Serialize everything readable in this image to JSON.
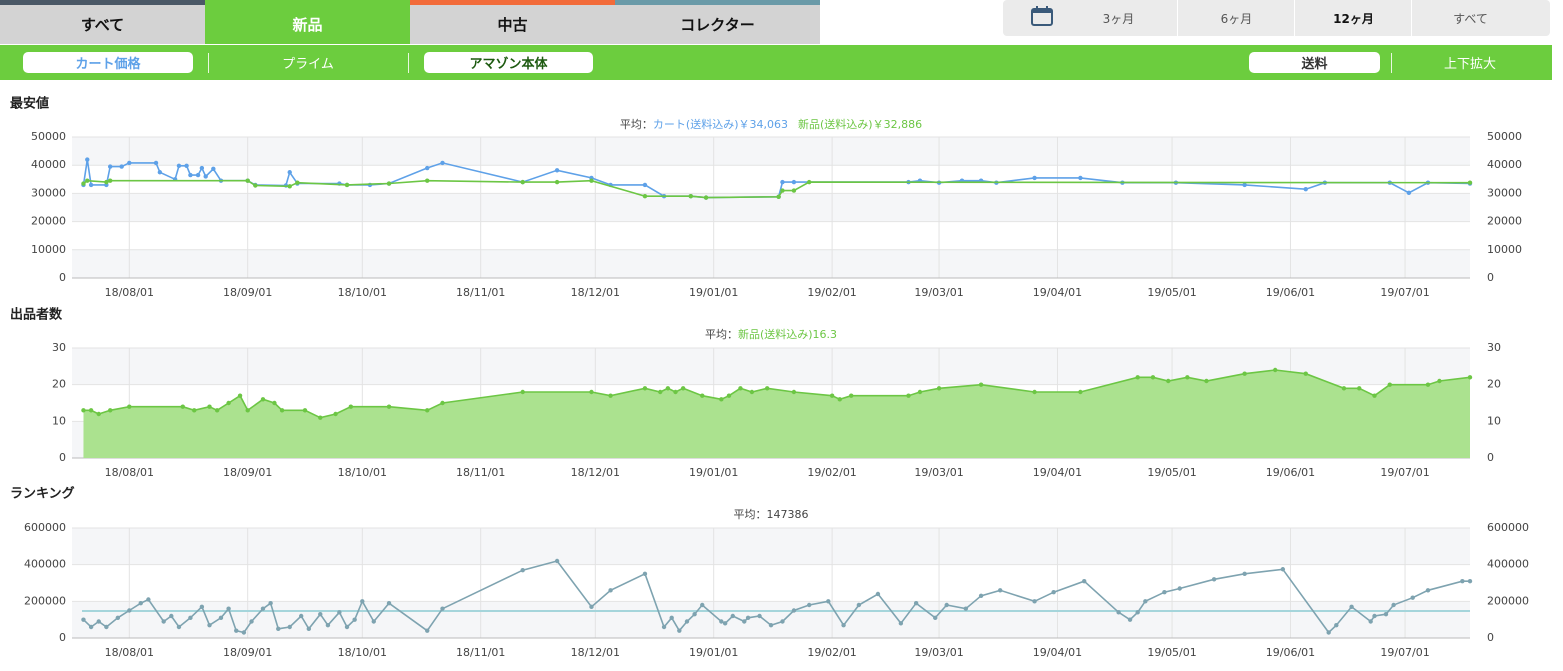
{
  "tabs": [
    "すべて",
    "新品",
    "中古",
    "コレクター"
  ],
  "periods": [
    "3ヶ月",
    "6ヶ月",
    "12ヶ月",
    "すべて"
  ],
  "filters": [
    "カート価格",
    "プライム",
    "アマゾン本体",
    "送料",
    "上下拡大"
  ],
  "chart_data": [
    {
      "type": "line",
      "title": "最安値",
      "average_label": "平均：",
      "averages": [
        "カート(送料込み)￥34,063",
        "新品(送料込み)￥32,886"
      ],
      "xlim": [
        "18/07/17",
        "19/07/18"
      ],
      "xticks": [
        "18/08/01",
        "18/09/01",
        "18/10/01",
        "18/11/01",
        "18/12/01",
        "19/01/01",
        "19/02/01",
        "19/03/01",
        "19/04/01",
        "19/05/01",
        "19/06/01",
        "19/07/01"
      ],
      "ylim": [
        0,
        50000
      ],
      "yticks": [
        0,
        10000,
        20000,
        30000,
        40000,
        50000
      ],
      "grid": true,
      "series": [
        {
          "color": "#5ea1e8",
          "x": [
            "18/07/20",
            "18/07/21",
            "18/07/22",
            "18/07/26",
            "18/07/27",
            "18/07/30",
            "18/08/01",
            "18/08/08",
            "18/08/09",
            "18/08/13",
            "18/08/14",
            "18/08/16",
            "18/08/17",
            "18/08/19",
            "18/08/20",
            "18/08/21",
            "18/08/23",
            "18/08/25",
            "18/09/01",
            "18/09/03",
            "18/09/11",
            "18/09/12",
            "18/09/14",
            "18/09/25",
            "18/09/27",
            "18/10/03",
            "18/10/08",
            "18/10/18",
            "18/10/22",
            "18/11/12",
            "18/11/21",
            "18/11/30",
            "18/12/05",
            "18/12/14",
            "18/12/19",
            "18/12/26",
            "18/12/30",
            "19/01/18",
            "19/01/19",
            "19/01/22",
            "19/02/21",
            "19/02/24",
            "19/03/01",
            "19/03/07",
            "19/03/12",
            "19/03/16",
            "19/03/26",
            "19/04/07",
            "19/04/18",
            "19/05/02",
            "19/05/20",
            "19/06/05",
            "19/06/10",
            "19/06/27",
            "19/07/02",
            "19/07/07",
            "19/07/18"
          ],
          "values": [
            33000,
            42000,
            33000,
            33000,
            39500,
            39500,
            40800,
            40800,
            37500,
            35000,
            39800,
            39800,
            36500,
            36500,
            39000,
            36000,
            38700,
            34500,
            34500,
            33000,
            32800,
            37500,
            33500,
            33500,
            33000,
            33000,
            33500,
            39000,
            40800,
            34000,
            38200,
            35500,
            33000,
            33000,
            29000,
            29000,
            28500,
            28800,
            34000,
            34000,
            34000,
            34500,
            33800,
            34500,
            34500,
            33800,
            35500,
            35500,
            33800,
            33800,
            33000,
            31500,
            33800,
            33800,
            30200,
            33800,
            33500
          ]
        },
        {
          "color": "#6cc644",
          "x": [
            "18/07/20",
            "18/07/21",
            "18/07/26",
            "18/07/27",
            "18/09/01",
            "18/09/03",
            "18/09/12",
            "18/09/14",
            "18/09/27",
            "18/10/08",
            "18/10/18",
            "18/11/12",
            "18/11/21",
            "18/11/30",
            "18/12/14",
            "18/12/26",
            "18/12/30",
            "19/01/18",
            "19/01/19",
            "19/01/22",
            "19/01/26",
            "19/07/18"
          ],
          "values": [
            33500,
            34500,
            34000,
            34500,
            34500,
            32800,
            32500,
            33800,
            33000,
            33500,
            34500,
            34000,
            34000,
            34500,
            29000,
            29000,
            28500,
            28800,
            31000,
            31000,
            34000,
            33800
          ]
        }
      ]
    },
    {
      "type": "area",
      "title": "出品者数",
      "average_label": "平均：",
      "averages": [
        "新品(送料込み)16.3"
      ],
      "xlim": [
        "18/07/17",
        "19/07/18"
      ],
      "xticks": [
        "18/08/01",
        "18/09/01",
        "18/10/01",
        "18/11/01",
        "18/12/01",
        "19/01/01",
        "19/02/01",
        "19/03/01",
        "19/04/01",
        "19/05/01",
        "19/06/01",
        "19/07/01"
      ],
      "ylim": [
        0,
        30
      ],
      "yticks": [
        0,
        10,
        20,
        30
      ],
      "grid": true,
      "series": [
        {
          "color": "#6cc644",
          "fill": "#abe28f",
          "x": [
            "18/07/20",
            "18/07/22",
            "18/07/24",
            "18/07/27",
            "18/08/01",
            "18/08/15",
            "18/08/18",
            "18/08/22",
            "18/08/24",
            "18/08/27",
            "18/08/30",
            "18/09/01",
            "18/09/05",
            "18/09/08",
            "18/09/10",
            "18/09/16",
            "18/09/20",
            "18/09/24",
            "18/09/28",
            "18/10/08",
            "18/10/18",
            "18/10/22",
            "18/11/12",
            "18/11/30",
            "18/12/05",
            "18/12/14",
            "18/12/18",
            "18/12/20",
            "18/12/22",
            "18/12/24",
            "18/12/29",
            "19/01/03",
            "19/01/05",
            "19/01/08",
            "19/01/11",
            "19/01/15",
            "19/01/22",
            "19/02/01",
            "19/02/03",
            "19/02/06",
            "19/02/21",
            "19/02/24",
            "19/03/01",
            "19/03/12",
            "19/03/26",
            "19/04/07",
            "19/04/22",
            "19/04/26",
            "19/04/30",
            "19/05/05",
            "19/05/10",
            "19/05/20",
            "19/05/28",
            "19/06/05",
            "19/06/15",
            "19/06/19",
            "19/06/23",
            "19/06/27",
            "19/07/07",
            "19/07/10",
            "19/07/18"
          ],
          "values": [
            13,
            13,
            12,
            13,
            14,
            14,
            13,
            14,
            13,
            15,
            17,
            13,
            16,
            15,
            13,
            13,
            11,
            12,
            14,
            14,
            13,
            15,
            18,
            18,
            17,
            19,
            18,
            19,
            18,
            19,
            17,
            16,
            17,
            19,
            18,
            19,
            18,
            17,
            16,
            17,
            17,
            18,
            19,
            20,
            18,
            18,
            22,
            22,
            21,
            22,
            21,
            23,
            24,
            23,
            19,
            19,
            17,
            20,
            20,
            21,
            22
          ]
        }
      ]
    },
    {
      "type": "line",
      "title": "ランキング",
      "average_label": "平均：",
      "average": 147386,
      "average_color": "#a5d5db",
      "xlim": [
        "18/07/17",
        "19/07/18"
      ],
      "xticks": [
        "18/08/01",
        "18/09/01",
        "18/10/01",
        "18/11/01",
        "18/12/01",
        "19/01/01",
        "19/02/01",
        "19/03/01",
        "19/04/01",
        "19/05/01",
        "19/06/01",
        "19/07/01"
      ],
      "ylim": [
        0,
        600000
      ],
      "yticks": [
        0,
        200000,
        400000,
        600000
      ],
      "grid": true,
      "series": [
        {
          "color": "#7ea3b0",
          "x": [
            "18/07/20",
            "18/07/22",
            "18/07/24",
            "18/07/26",
            "18/07/29",
            "18/08/01",
            "18/08/04",
            "18/08/06",
            "18/08/10",
            "18/08/12",
            "18/08/14",
            "18/08/17",
            "18/08/20",
            "18/08/22",
            "18/08/25",
            "18/08/27",
            "18/08/29",
            "18/08/31",
            "18/09/02",
            "18/09/05",
            "18/09/07",
            "18/09/09",
            "18/09/12",
            "18/09/15",
            "18/09/17",
            "18/09/20",
            "18/09/22",
            "18/09/25",
            "18/09/27",
            "18/09/29",
            "18/10/01",
            "18/10/04",
            "18/10/08",
            "18/10/18",
            "18/10/22",
            "18/11/12",
            "18/11/21",
            "18/11/30",
            "18/12/05",
            "18/12/14",
            "18/12/19",
            "18/12/21",
            "18/12/23",
            "18/12/25",
            "18/12/27",
            "18/12/29",
            "19/01/03",
            "19/01/04",
            "19/01/06",
            "19/01/09",
            "19/01/10",
            "19/01/13",
            "19/01/16",
            "19/01/19",
            "19/01/22",
            "19/01/26",
            "19/01/31",
            "19/02/04",
            "19/02/08",
            "19/02/13",
            "19/02/19",
            "19/02/23",
            "19/02/28",
            "19/03/03",
            "19/03/08",
            "19/03/12",
            "19/03/17",
            "19/03/26",
            "19/03/31",
            "19/04/08",
            "19/04/17",
            "19/04/20",
            "19/04/22",
            "19/04/24",
            "19/04/29",
            "19/05/03",
            "19/05/12",
            "19/05/20",
            "19/05/30",
            "19/06/11",
            "19/06/13",
            "19/06/17",
            "19/06/22",
            "19/06/23",
            "19/06/26",
            "19/06/28",
            "19/07/03",
            "19/07/07",
            "19/07/16",
            "19/07/18"
          ],
          "values": [
            100000,
            60000,
            90000,
            60000,
            110000,
            150000,
            190000,
            210000,
            90000,
            120000,
            60000,
            110000,
            170000,
            70000,
            110000,
            160000,
            40000,
            30000,
            90000,
            160000,
            190000,
            50000,
            60000,
            120000,
            50000,
            130000,
            70000,
            140000,
            60000,
            100000,
            200000,
            90000,
            190000,
            40000,
            160000,
            370000,
            420000,
            170000,
            260000,
            350000,
            60000,
            110000,
            40000,
            90000,
            130000,
            180000,
            90000,
            80000,
            120000,
            90000,
            110000,
            120000,
            70000,
            90000,
            150000,
            180000,
            200000,
            70000,
            180000,
            240000,
            80000,
            190000,
            110000,
            180000,
            160000,
            230000,
            260000,
            200000,
            250000,
            310000,
            140000,
            100000,
            140000,
            200000,
            250000,
            270000,
            320000,
            350000,
            375000,
            30000,
            70000,
            170000,
            90000,
            120000,
            130000,
            180000,
            220000,
            260000,
            310000,
            310000
          ]
        }
      ]
    }
  ]
}
